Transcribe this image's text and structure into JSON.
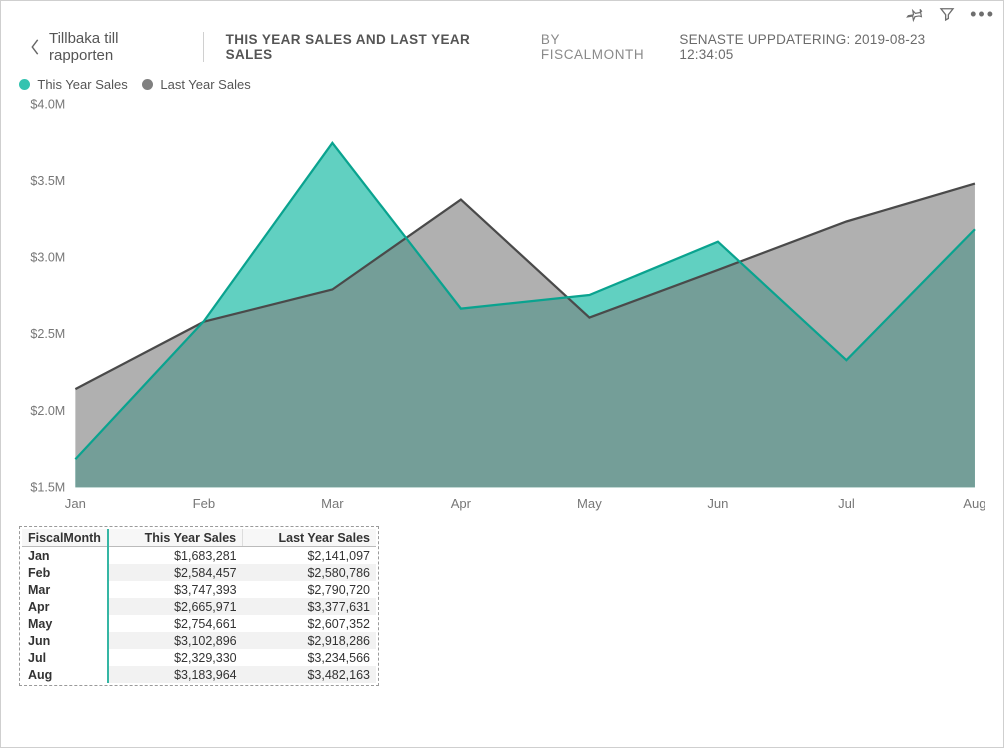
{
  "toolbar": {
    "pin_icon": "pin",
    "filter_icon": "filter",
    "more_icon": "ellipsis"
  },
  "header": {
    "back_label": "Tillbaka till rapporten",
    "title_main": "THIS YEAR SALES AND LAST YEAR SALES",
    "title_sub": "BY FISCALMONTH",
    "updated_label": "SENASTE UPPDATERING: 2019-08-23 12:34:05"
  },
  "legend": {
    "series_a": "This Year Sales",
    "series_b": "Last Year Sales"
  },
  "chart": {
    "type": "area",
    "categories": [
      "Jan",
      "Feb",
      "Mar",
      "Apr",
      "May",
      "Jun",
      "Jul",
      "Aug"
    ],
    "this_year": [
      1683281,
      2584457,
      3747393,
      2665971,
      2754661,
      3102896,
      2329330,
      3183964
    ],
    "last_year": [
      2141097,
      2580786,
      2790720,
      3377631,
      2607352,
      2918286,
      3234566,
      3482163
    ],
    "ylim": [
      1500000,
      4000000
    ],
    "ytick_step": 500000,
    "ytick_labels": [
      "$1.5M",
      "$2.0M",
      "$2.5M",
      "$3.0M",
      "$3.5M",
      "$4.0M"
    ],
    "colors": {
      "this_year_fill": "#34c3b0",
      "this_year_line": "#0aa38f",
      "last_year_fill": "#808080",
      "last_year_line": "#4a4a4a",
      "axis_text": "#777777",
      "background": "#ffffff"
    },
    "line_width": 2.2,
    "fill_opacity_ty": 0.78,
    "fill_opacity_ly": 0.62,
    "label_fontsize": 13
  },
  "table": {
    "columns": [
      "FiscalMonth",
      "This Year Sales",
      "Last Year Sales"
    ],
    "rows": [
      [
        "Jan",
        "$1,683,281",
        "$2,141,097"
      ],
      [
        "Feb",
        "$2,584,457",
        "$2,580,786"
      ],
      [
        "Mar",
        "$3,747,393",
        "$2,790,720"
      ],
      [
        "Apr",
        "$2,665,971",
        "$3,377,631"
      ],
      [
        "May",
        "$2,754,661",
        "$2,607,352"
      ],
      [
        "Jun",
        "$3,102,896",
        "$2,918,286"
      ],
      [
        "Jul",
        "$2,329,330",
        "$3,234,566"
      ],
      [
        "Aug",
        "$3,183,964",
        "$3,482,163"
      ]
    ],
    "accent_color": "#35b6a4",
    "alt_row_bg": "#f2f2f2"
  }
}
